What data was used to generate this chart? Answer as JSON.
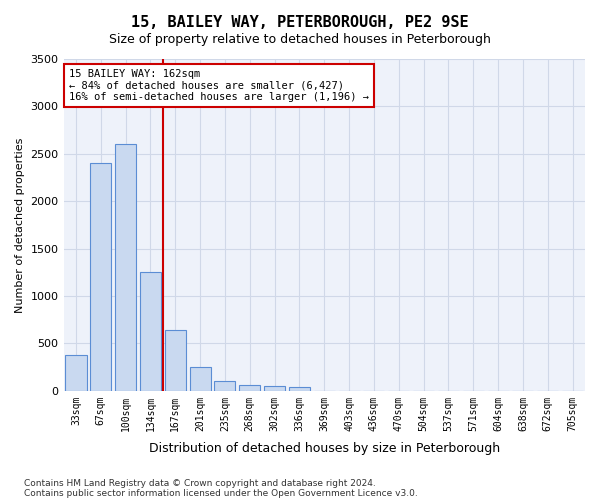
{
  "title": "15, BAILEY WAY, PETERBOROUGH, PE2 9SE",
  "subtitle": "Size of property relative to detached houses in Peterborough",
  "xlabel": "Distribution of detached houses by size in Peterborough",
  "ylabel": "Number of detached properties",
  "footnote1": "Contains HM Land Registry data © Crown copyright and database right 2024.",
  "footnote2": "Contains public sector information licensed under the Open Government Licence v3.0.",
  "bins": [
    "33sqm",
    "67sqm",
    "100sqm",
    "134sqm",
    "167sqm",
    "201sqm",
    "235sqm",
    "268sqm",
    "302sqm",
    "336sqm",
    "369sqm",
    "403sqm",
    "436sqm",
    "470sqm",
    "504sqm",
    "537sqm",
    "571sqm",
    "604sqm",
    "638sqm",
    "672sqm",
    "705sqm"
  ],
  "bar_values": [
    380,
    2400,
    2600,
    1250,
    640,
    250,
    100,
    65,
    55,
    35,
    0,
    0,
    0,
    0,
    0,
    0,
    0,
    0,
    0,
    0,
    0
  ],
  "bar_color": "#c9d9f0",
  "bar_edge_color": "#5b8dd4",
  "vline_color": "#cc0000",
  "vline_bar_index": 4,
  "ylim": [
    0,
    3500
  ],
  "yticks": [
    0,
    500,
    1000,
    1500,
    2000,
    2500,
    3000,
    3500
  ],
  "property_size": "162sqm",
  "pct_smaller": 84,
  "count_smaller": 6427,
  "pct_larger_semi": 16,
  "count_larger_semi": 1196,
  "annotation_box_color": "#cc0000",
  "grid_color": "#d0d8e8",
  "bg_color": "#eef2fa"
}
